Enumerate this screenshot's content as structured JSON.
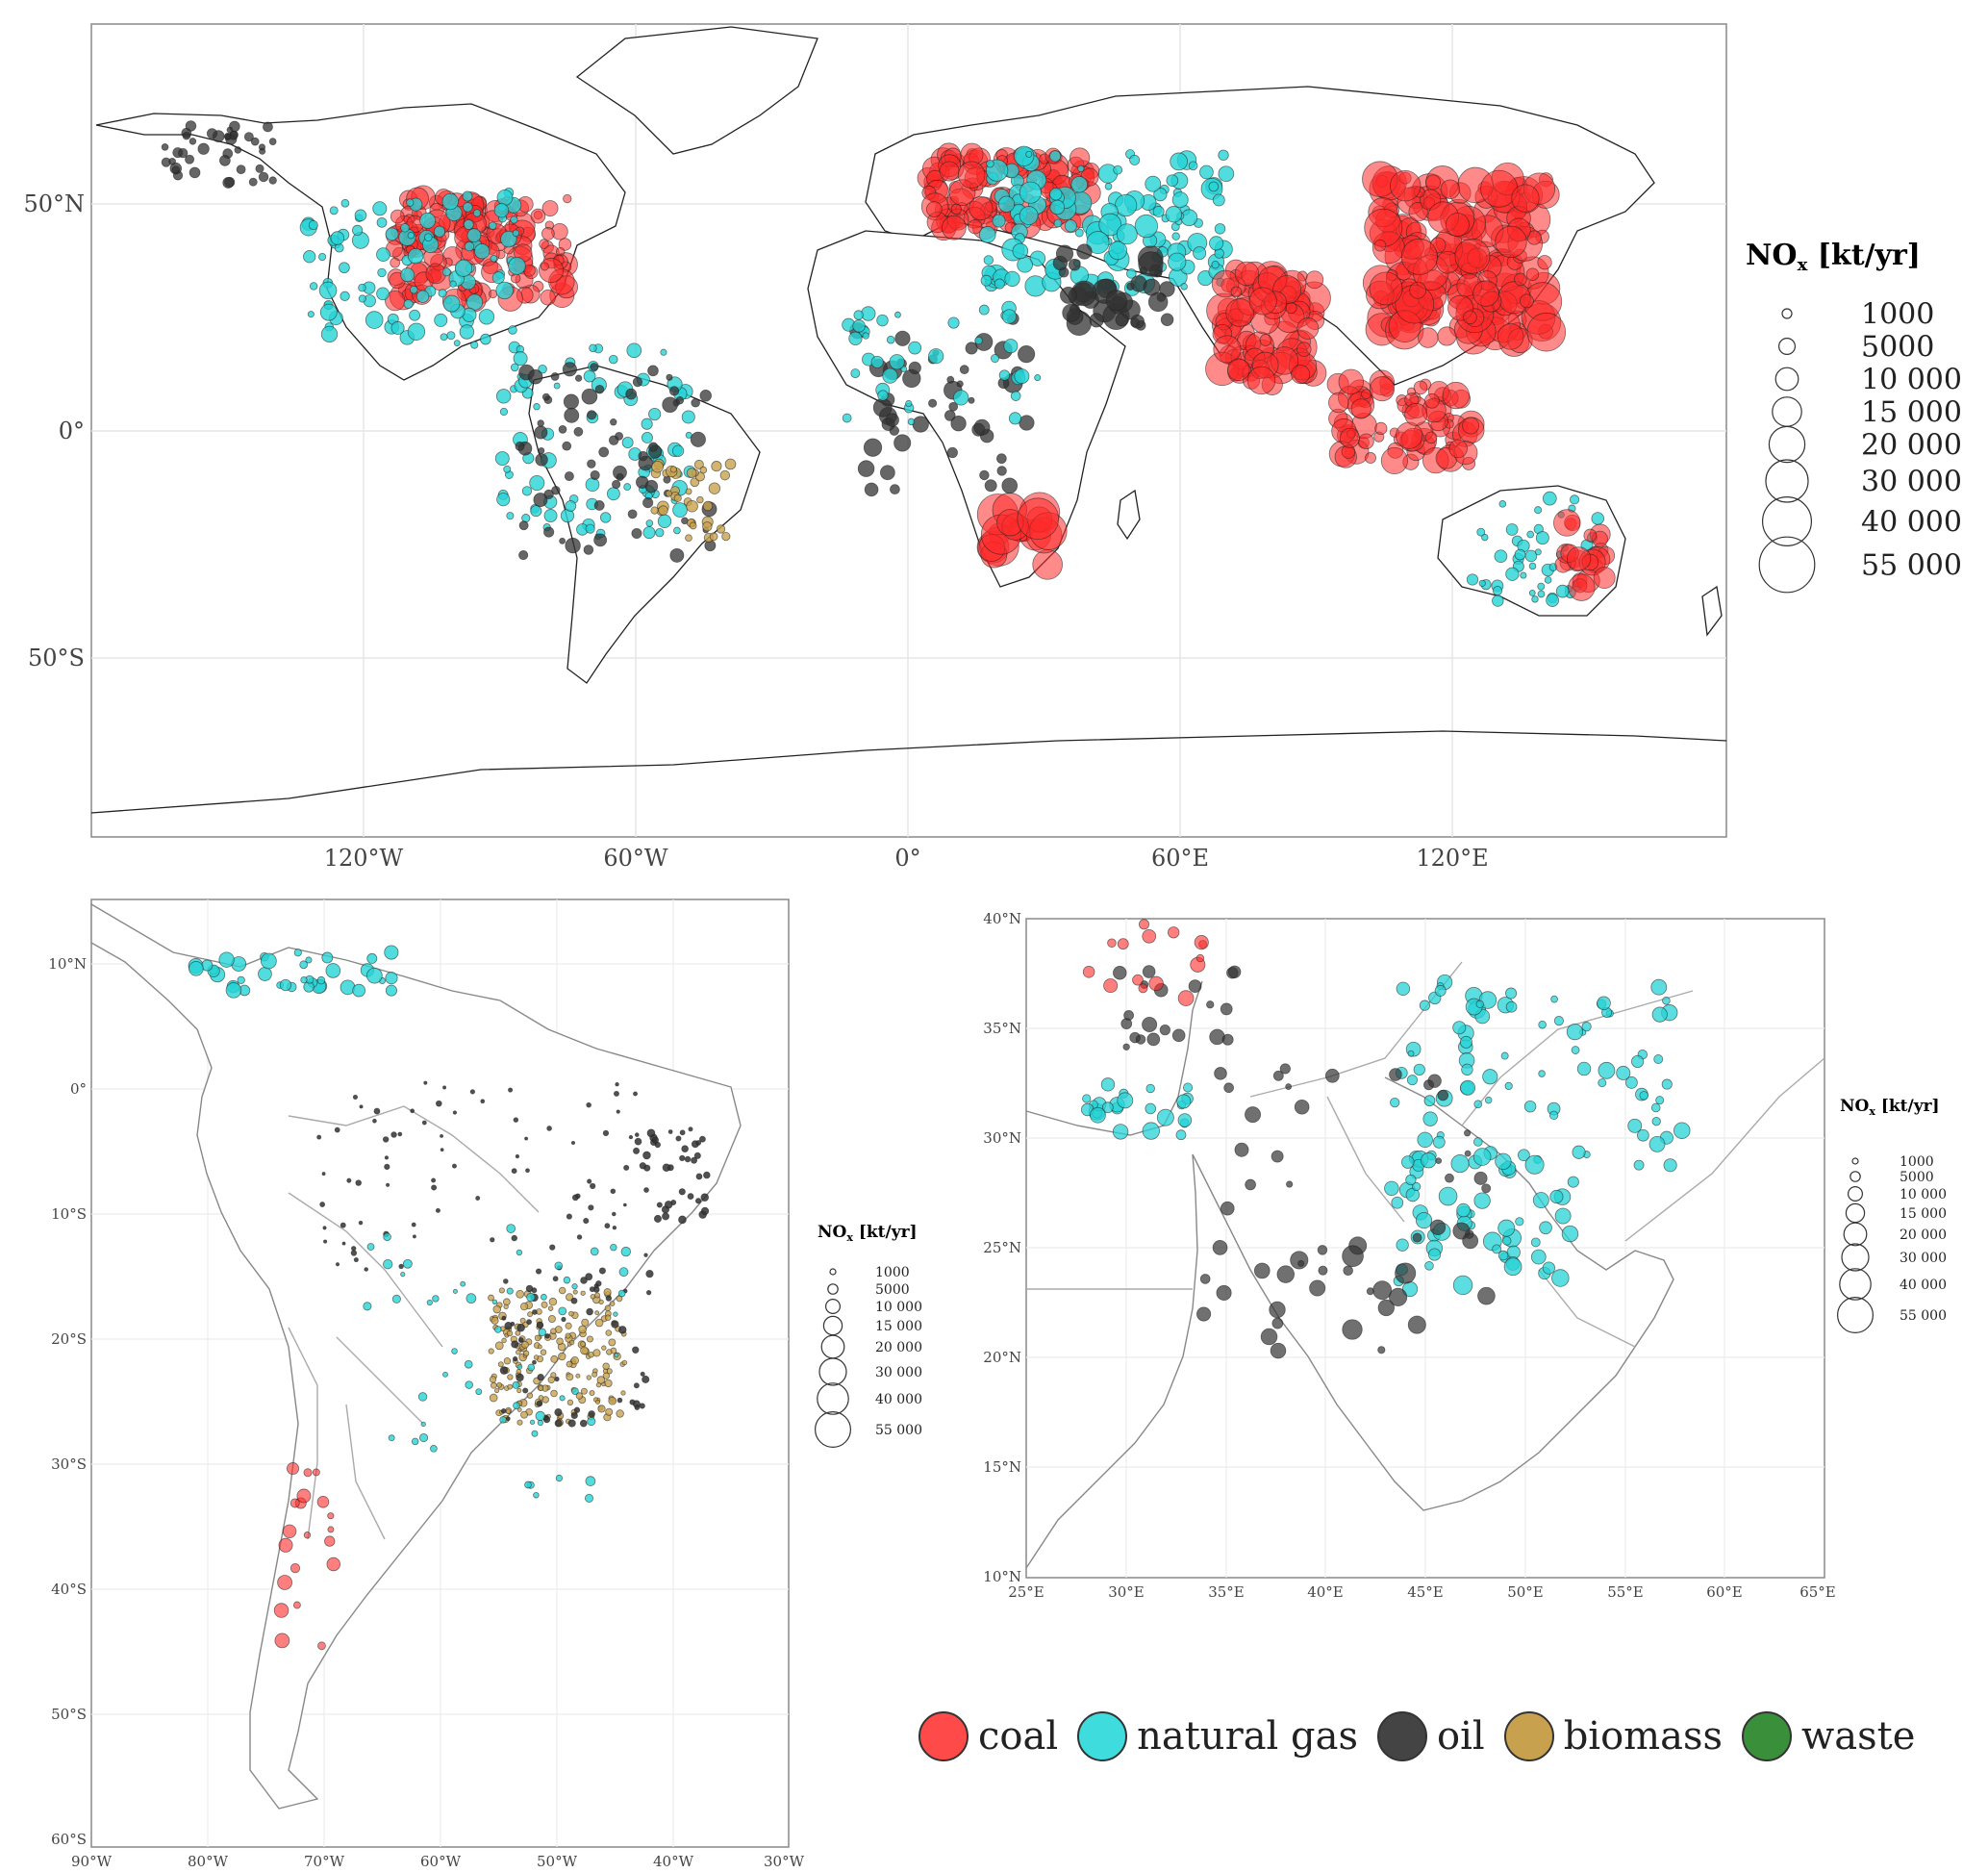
{
  "colors": {
    "coal": "#ff2a2a",
    "natural_gas": "#26d3d6",
    "oil": "#333333",
    "biomass": "#c8a14e",
    "waste": "#3a8f3a",
    "land_outline": "#222222",
    "grid": "#e6e6e6"
  },
  "world_map": {
    "lat_ticks": [
      "50°N",
      "0°",
      "50°S"
    ],
    "lon_ticks": [
      "120°W",
      "60°W",
      "0°",
      "60°E",
      "120°E"
    ],
    "size_legend": {
      "title_main": "NO",
      "title_sub": "x",
      "title_rest": " [kt/yr]",
      "values": [
        "1000",
        "5000",
        "10 000",
        "15 000",
        "20 000",
        "30 000",
        "40 000",
        "55 000"
      ]
    }
  },
  "south_america_map": {
    "lat_ticks": [
      "10°N",
      "0°",
      "10°S",
      "20°S",
      "30°S",
      "40°S",
      "50°S",
      "60°S"
    ],
    "lon_ticks": [
      "90°W",
      "80°W",
      "70°W",
      "60°W",
      "50°W",
      "40°W",
      "30°W"
    ],
    "size_legend": {
      "title_main": "NO",
      "title_sub": "x",
      "title_rest": " [kt/yr]",
      "values": [
        "1000",
        "5000",
        "10 000",
        "15 000",
        "20 000",
        "30 000",
        "40 000",
        "55 000"
      ]
    }
  },
  "middle_east_map": {
    "lat_ticks": [
      "40°N",
      "35°N",
      "30°N",
      "25°N",
      "20°N",
      "15°N",
      "10°N"
    ],
    "lon_ticks": [
      "25°E",
      "30°E",
      "35°E",
      "40°E",
      "45°E",
      "50°E",
      "55°E",
      "60°E",
      "65°E"
    ],
    "size_legend": {
      "title_main": "NO",
      "title_sub": "x",
      "title_rest": " [kt/yr]",
      "values": [
        "1000",
        "5000",
        "10 000",
        "15 000",
        "20 000",
        "30 000",
        "40 000",
        "55 000"
      ]
    }
  },
  "fuel_legend": [
    {
      "key": "coal",
      "label": "coal"
    },
    {
      "key": "natural_gas",
      "label": "natural gas"
    },
    {
      "key": "oil",
      "label": "oil"
    },
    {
      "key": "biomass",
      "label": "biomass"
    },
    {
      "key": "waste",
      "label": "waste"
    }
  ]
}
